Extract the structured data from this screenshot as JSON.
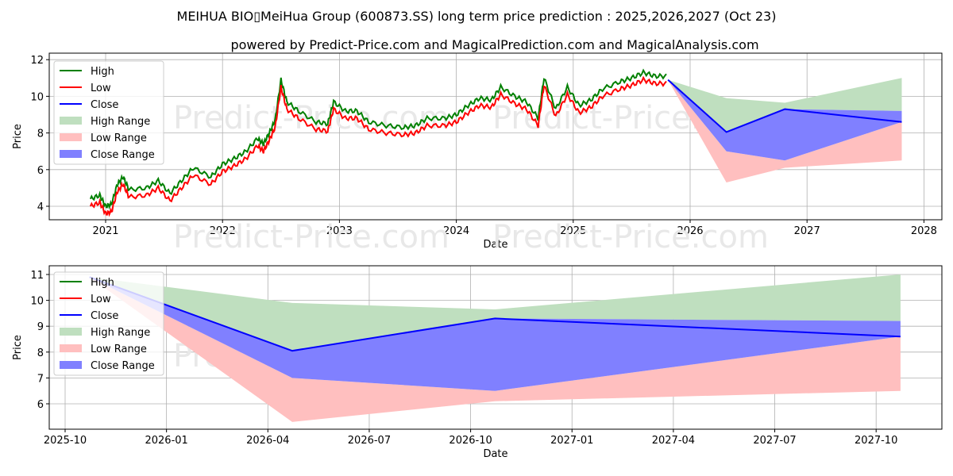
{
  "title": "MEIHUA BIO▯MeiHua Group (600873.SS) long term price prediction : 2025,2026,2027 (Oct 23)",
  "subtitle": "powered by Predict-Price.com and MagicalPrediction.com and MagicalAnalysis.com",
  "watermark": "Predict-Price.com",
  "colors": {
    "high": "#008000",
    "low": "#ff0000",
    "close": "#0000ff",
    "high_range": "#bfdfbf",
    "low_range": "#ffbfbf",
    "close_range": "#8080ff"
  },
  "legend": [
    "High",
    "Low",
    "Close",
    "High Range",
    "Low Range",
    "Close Range"
  ],
  "chart_data": [
    {
      "type": "line",
      "xlabel": "Date",
      "ylabel": "Price",
      "xticks": [
        "2021",
        "2022",
        "2023",
        "2024",
        "2025",
        "2026",
        "2027",
        "2028"
      ],
      "yticks": [
        "4",
        "6",
        "8",
        "10",
        "12"
      ],
      "ylim": [
        3.3,
        12.3
      ],
      "xlim": [
        2020.52,
        2028.15
      ],
      "grid": true,
      "legend_position": "top-left",
      "history_x": [
        2020.87,
        2020.95,
        2021.0,
        2021.05,
        2021.1,
        2021.15,
        2021.2,
        2021.35,
        2021.45,
        2021.55,
        2021.65,
        2021.75,
        2021.9,
        2022.0,
        2022.1,
        2022.2,
        2022.3,
        2022.35,
        2022.4,
        2022.45,
        2022.5,
        2022.55,
        2022.65,
        2022.8,
        2022.9,
        2022.95,
        2023.05,
        2023.15,
        2023.25,
        2023.4,
        2023.55,
        2023.65,
        2023.75,
        2023.9,
        2024.0,
        2024.1,
        2024.2,
        2024.3,
        2024.38,
        2024.5,
        2024.6,
        2024.7,
        2024.75,
        2024.85,
        2024.95,
        2025.05,
        2025.15,
        2025.25,
        2025.4,
        2025.5,
        2025.6,
        2025.7,
        2025.81
      ],
      "history_close": [
        4.2,
        4.4,
        3.8,
        3.9,
        5.0,
        5.4,
        4.7,
        4.8,
        5.2,
        4.5,
        5.2,
        5.9,
        5.4,
        6.1,
        6.4,
        6.8,
        7.5,
        7.2,
        7.8,
        8.5,
        10.7,
        9.5,
        9.0,
        8.4,
        8.3,
        9.5,
        9.0,
        9.0,
        8.4,
        8.2,
        8.1,
        8.2,
        8.6,
        8.6,
        8.8,
        9.3,
        9.7,
        9.6,
        10.3,
        9.8,
        9.5,
        8.6,
        10.8,
        9.1,
        10.3,
        9.3,
        9.6,
        10.2,
        10.6,
        10.8,
        11.1,
        10.9,
        10.9
      ],
      "high_offset": 0.2,
      "low_offset": -0.2
    },
    {
      "type": "area",
      "xlabel": "Date",
      "ylabel": "Price",
      "xticks": [
        "2025-10",
        "2026-01",
        "2026-04",
        "2026-07",
        "2026-10",
        "2027-01",
        "2027-04",
        "2027-07",
        "2027-10"
      ],
      "yticks": [
        "6",
        "7",
        "8",
        "9",
        "10",
        "11"
      ],
      "ylim": [
        5.0,
        11.2
      ],
      "grid": true,
      "legend_position": "top-left",
      "dates": [
        "2025-10-23",
        "2026-04-23",
        "2026-10-23",
        "2027-10-23"
      ],
      "close": [
        10.9,
        8.05,
        9.3,
        8.6
      ],
      "high_range": {
        "lo": [
          10.9,
          8.05,
          9.3,
          9.2
        ],
        "hi": [
          10.9,
          9.9,
          9.65,
          11.0
        ]
      },
      "close_range": {
        "lo": [
          10.9,
          7.0,
          6.5,
          8.6
        ],
        "hi": [
          10.9,
          8.05,
          9.3,
          9.2
        ]
      },
      "low_range": {
        "lo": [
          10.9,
          5.3,
          6.1,
          6.5
        ],
        "hi": [
          10.9,
          7.0,
          6.5,
          8.6
        ]
      }
    }
  ]
}
